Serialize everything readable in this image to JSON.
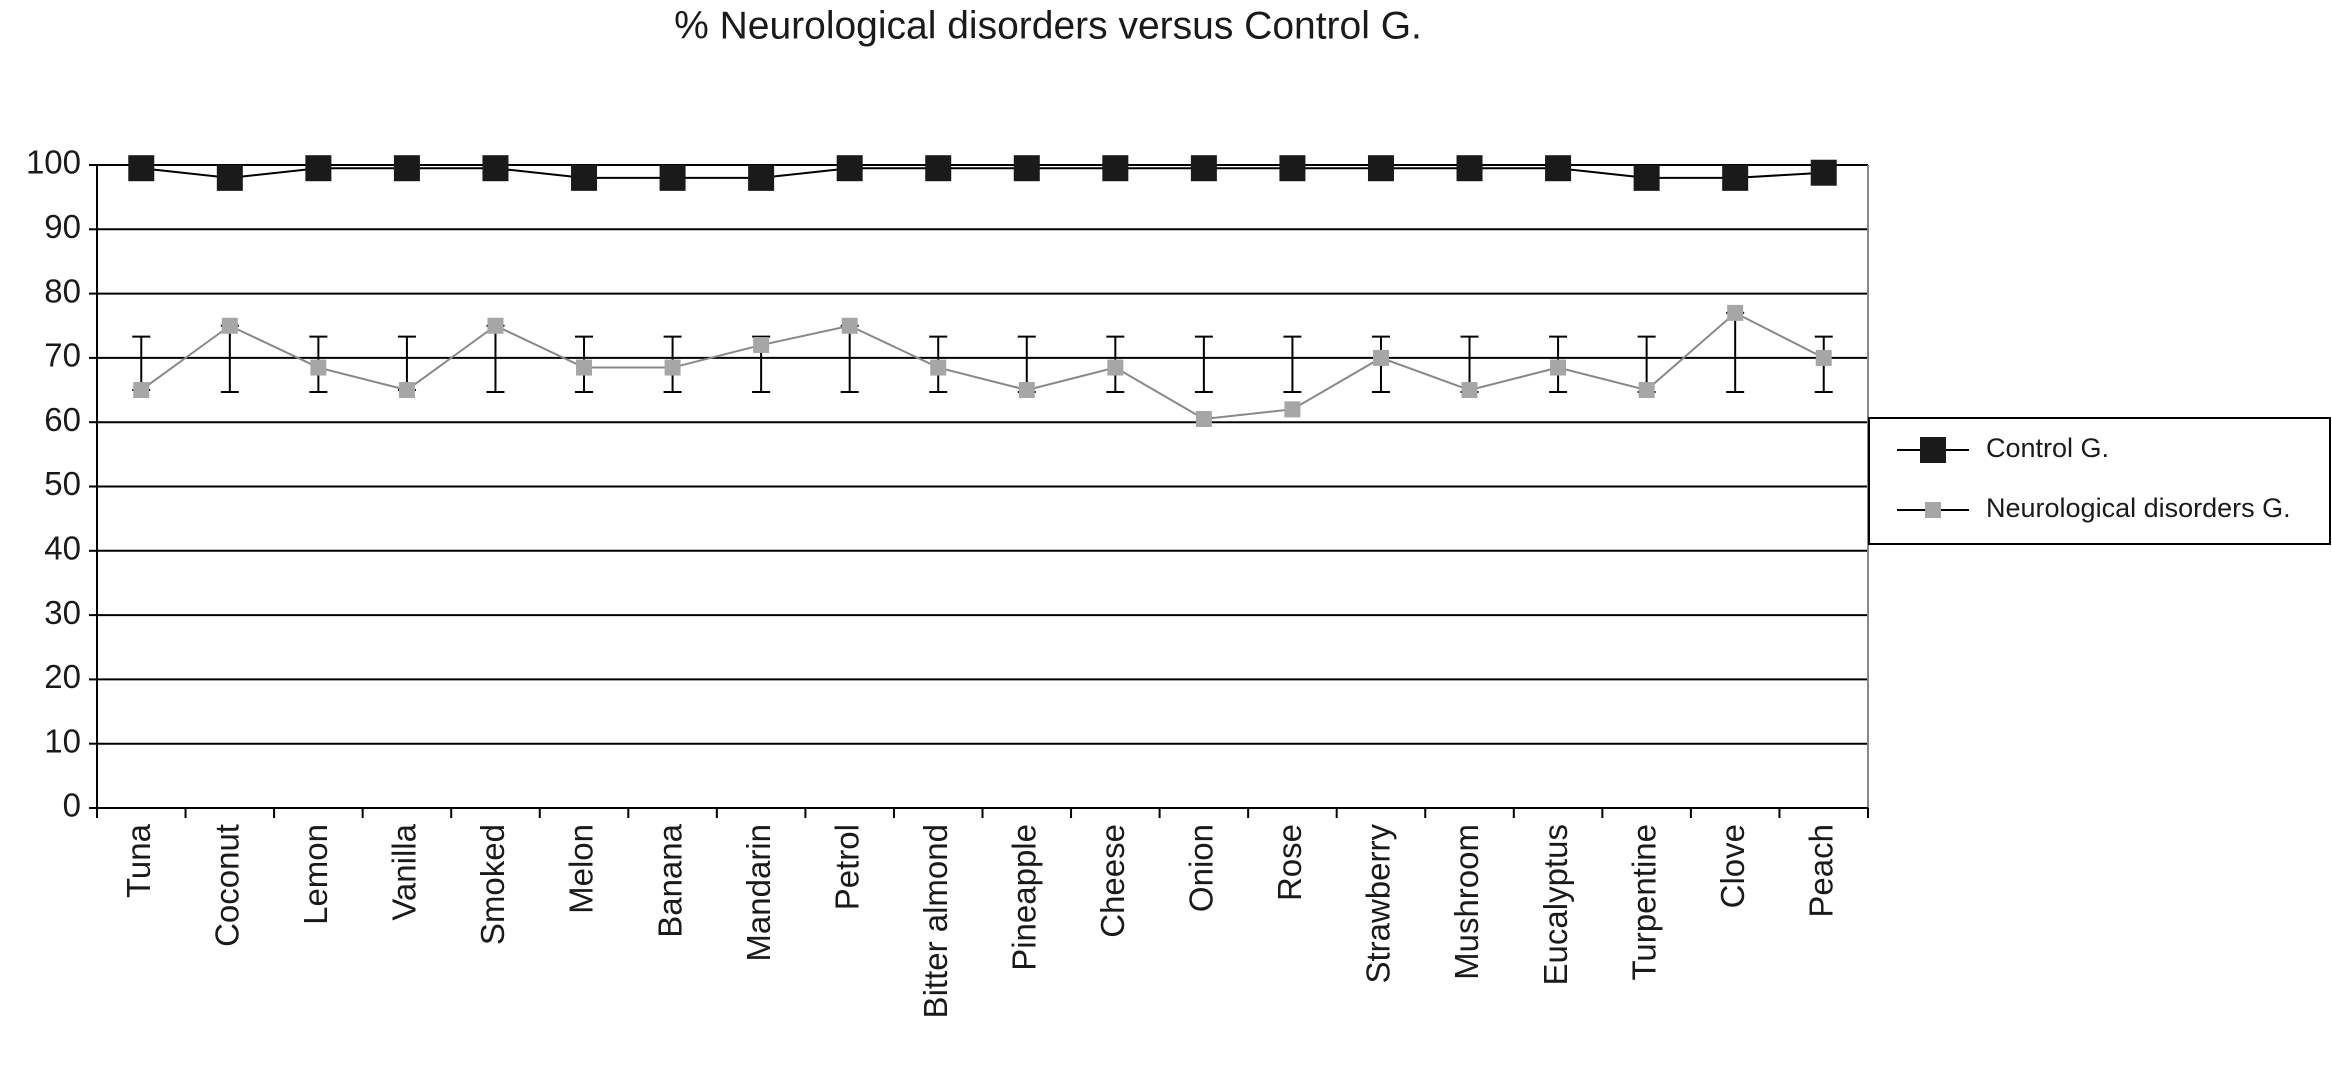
{
  "chart_data": {
    "type": "line",
    "title": "% Neurological disorders versus Control G.",
    "categories": [
      "Tuna",
      "Coconut",
      "Lemon",
      "Vanilla",
      "Smoked",
      "Melon",
      "Banana",
      "Mandarin",
      "Petrol",
      "Bitter almond",
      "Pineapple",
      "Cheese",
      "Onion",
      "Rose",
      "Strawberry",
      "Mushroom",
      "Eucalyptus",
      "Turpentine",
      "Clove",
      "Peach"
    ],
    "series": [
      {
        "name": "Control G.",
        "color": "#1a1a1a",
        "values": [
          99.5,
          98,
          99.5,
          99.5,
          99.5,
          98,
          98,
          98,
          99.5,
          99.5,
          99.5,
          99.5,
          99.5,
          99.5,
          99.5,
          99.5,
          99.5,
          98,
          98,
          98.8
        ]
      },
      {
        "name": "Neurological disorders G.",
        "color": "#a6a6a6",
        "values": [
          65,
          75,
          68.5,
          65,
          75,
          68.5,
          68.5,
          72,
          75,
          68.5,
          65,
          68.5,
          60.5,
          62,
          70,
          65,
          68.5,
          65,
          77,
          70
        ],
        "error_bars": [
          {
            "low": 65,
            "high": 73.3
          },
          {
            "low": 64.7,
            "high": 75
          },
          {
            "low": 64.7,
            "high": 73.3
          },
          {
            "low": 65,
            "high": 73.3
          },
          {
            "low": 64.7,
            "high": 75
          },
          {
            "low": 64.7,
            "high": 73.3
          },
          {
            "low": 64.7,
            "high": 73.3
          },
          {
            "low": 64.7,
            "high": 73.3
          },
          {
            "low": 64.7,
            "high": 75
          },
          {
            "low": 64.7,
            "high": 73.3
          },
          {
            "low": 64.7,
            "high": 73.3
          },
          {
            "low": 64.7,
            "high": 73.3
          },
          {
            "low": 64.7,
            "high": 73.3
          },
          {
            "low": 64.7,
            "high": 73.3
          },
          {
            "low": 64.7,
            "high": 73.3
          },
          {
            "low": 64.7,
            "high": 73.3
          },
          {
            "low": 64.7,
            "high": 73.3
          },
          {
            "low": 64.7,
            "high": 73.3
          },
          {
            "low": 64.7,
            "high": 77
          },
          {
            "low": 64.7,
            "high": 73.3
          }
        ]
      }
    ],
    "ylim": [
      0,
      100
    ],
    "yticks": [
      0,
      10,
      20,
      30,
      40,
      50,
      60,
      70,
      80,
      90,
      100
    ],
    "grid": true,
    "legend": "right"
  }
}
